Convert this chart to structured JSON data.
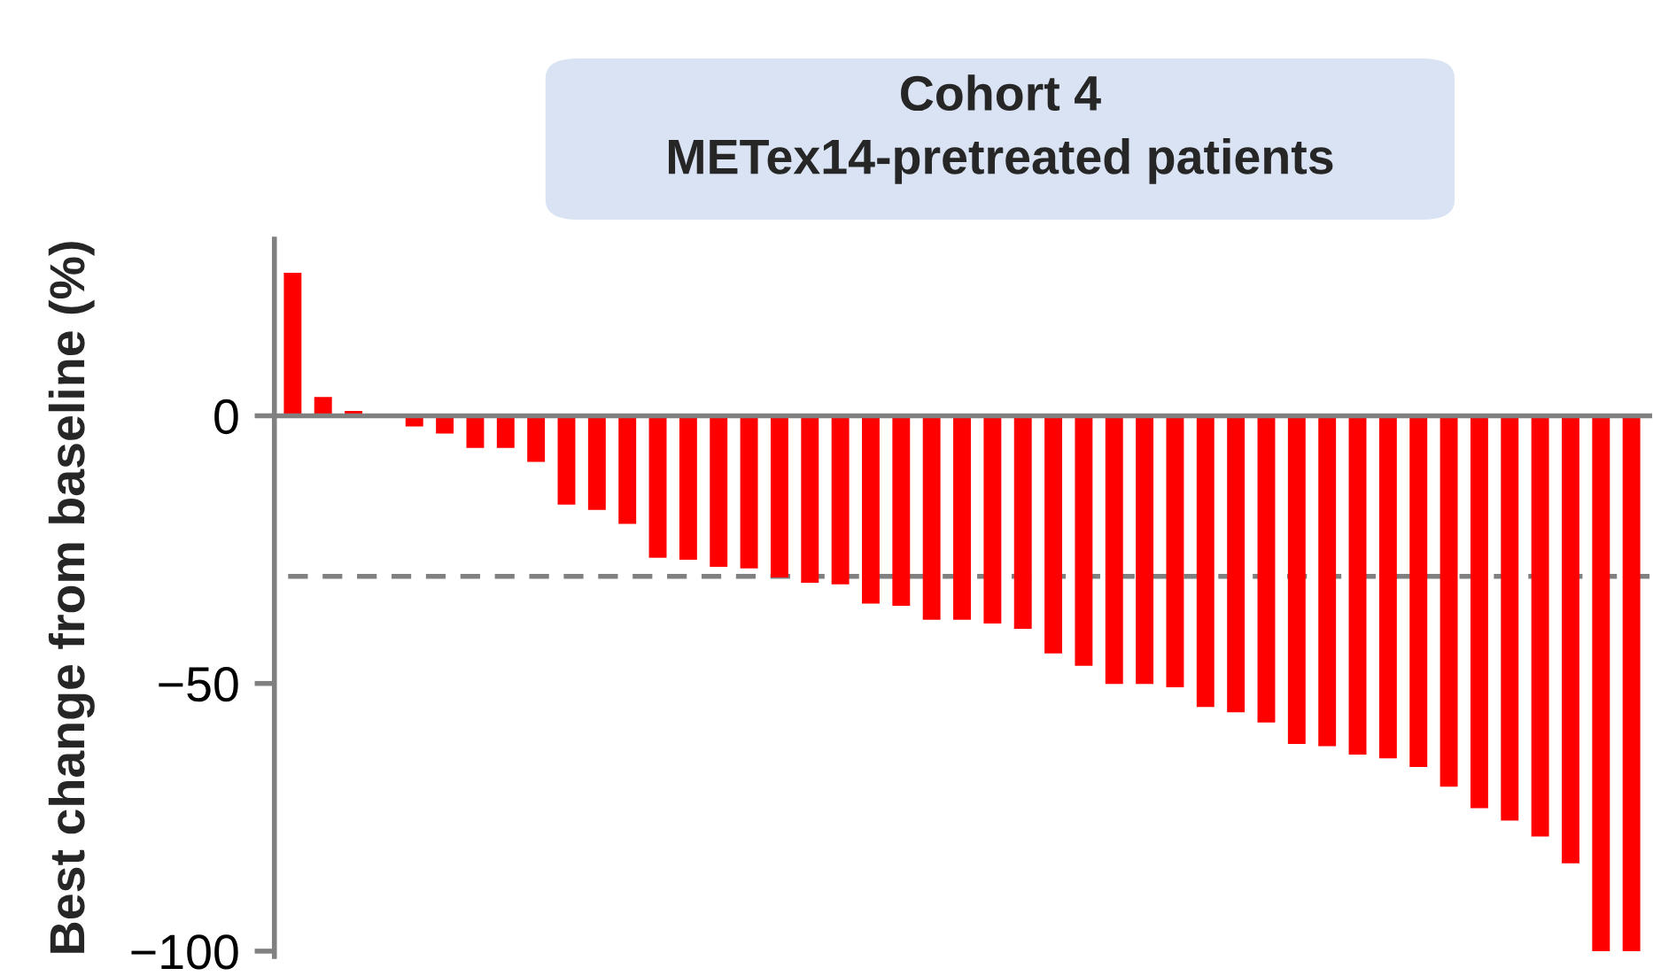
{
  "chart_data": {
    "type": "bar",
    "title": "Cohort 4",
    "subtitle": "METex14-pretreated patients",
    "ylabel": "Best change from baseline (%)",
    "categories": [
      null,
      null,
      null,
      null,
      null,
      null,
      null,
      null,
      null,
      null,
      null,
      null,
      null,
      null,
      null,
      null,
      null,
      null,
      null,
      null,
      null,
      null,
      null,
      null,
      null,
      null,
      null,
      null,
      null,
      null,
      null,
      null,
      null,
      null,
      null,
      null,
      null,
      null,
      null,
      null,
      null,
      null,
      null,
      null,
      null
    ],
    "values": [
      26.7,
      3.5,
      0.9,
      0,
      -2.0,
      -3.3,
      -6.0,
      -6.0,
      -8.6,
      -16.6,
      -17.6,
      -20.2,
      -26.5,
      -26.9,
      -28.2,
      -28.5,
      -30.2,
      -31.2,
      -31.5,
      -35.1,
      -35.5,
      -38.1,
      -38.1,
      -38.8,
      -39.8,
      -44.4,
      -46.7,
      -50.1,
      -50.1,
      -50.7,
      -54.4,
      -55.4,
      -57.3,
      -61.3,
      -61.7,
      -63.3,
      -64.0,
      -65.6,
      -69.3,
      -73.3,
      -75.6,
      -78.6,
      -83.6,
      -100,
      -100
    ],
    "color": "#ff0000",
    "ylim": [
      -101,
      33
    ],
    "yticks": [
      0,
      {
        "value": -50,
        "label": "−50"
      },
      {
        "value": -100,
        "label": "−100"
      }
    ],
    "ref_lines": [
      {
        "axis": "y",
        "value": -30,
        "color": "#808080",
        "line_style": "dashed"
      }
    ],
    "tick_labels": "y"
  }
}
